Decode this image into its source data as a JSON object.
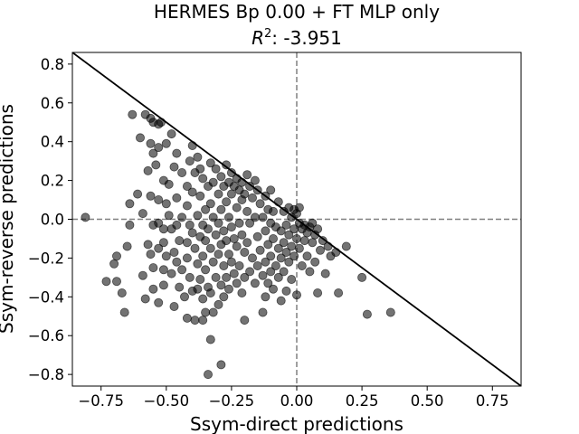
{
  "chart_data": {
    "type": "scatter",
    "title_line1": "HERMES Bp 0.00 + FT MLP only",
    "title_line2_prefix": "R",
    "title_line2_sup": "2",
    "title_line2_suffix": ": -3.951",
    "xlabel": "Ssym-direct predictions",
    "ylabel": "Ssym-reverse predictions",
    "xlim": [
      -0.86,
      0.86
    ],
    "ylim": [
      -0.86,
      0.86
    ],
    "xticks": [
      -0.75,
      -0.5,
      -0.25,
      0.0,
      0.25,
      0.5,
      0.75
    ],
    "xtick_labels": [
      "−0.75",
      "−0.50",
      "−0.25",
      "0.00",
      "0.25",
      "0.50",
      "0.75"
    ],
    "yticks": [
      -0.8,
      -0.6,
      -0.4,
      -0.2,
      0.0,
      0.2,
      0.4,
      0.6,
      0.8
    ],
    "ytick_labels": [
      "−0.8",
      "−0.6",
      "−0.4",
      "−0.2",
      "0.0",
      "0.2",
      "0.4",
      "0.6",
      "0.8"
    ],
    "reference_line": {
      "from": [
        -0.86,
        0.86
      ],
      "to": [
        0.86,
        -0.86
      ],
      "color": "#000000",
      "style": "solid"
    },
    "zero_lines": {
      "color": "#808080",
      "style": "dashed"
    },
    "marker_color": "#000000",
    "marker_alpha": 0.55,
    "grid": false,
    "points": [
      [
        -0.81,
        0.01
      ],
      [
        -0.73,
        -0.32
      ],
      [
        -0.7,
        -0.23
      ],
      [
        -0.69,
        -0.19
      ],
      [
        -0.69,
        -0.32
      ],
      [
        -0.67,
        -0.38
      ],
      [
        -0.66,
        -0.48
      ],
      [
        -0.65,
        -0.14
      ],
      [
        -0.64,
        0.08
      ],
      [
        -0.64,
        -0.03
      ],
      [
        -0.63,
        0.54
      ],
      [
        -0.61,
        0.13
      ],
      [
        -0.6,
        0.42
      ],
      [
        -0.59,
        0.03
      ],
      [
        -0.59,
        -0.29
      ],
      [
        -0.58,
        0.54
      ],
      [
        -0.58,
        -0.41
      ],
      [
        -0.57,
        -0.13
      ],
      [
        -0.57,
        0.25
      ],
      [
        -0.56,
        0.52
      ],
      [
        -0.56,
        0.39
      ],
      [
        -0.56,
        0.12
      ],
      [
        -0.56,
        -0.18
      ],
      [
        -0.55,
        0.5
      ],
      [
        -0.55,
        0.34
      ],
      [
        -0.55,
        -0.03
      ],
      [
        -0.55,
        -0.25
      ],
      [
        -0.55,
        -0.36
      ],
      [
        -0.54,
        0.28
      ],
      [
        -0.53,
        0.49
      ],
      [
        -0.53,
        0.37
      ],
      [
        -0.53,
        0.1
      ],
      [
        -0.53,
        -0.02
      ],
      [
        -0.53,
        -0.15
      ],
      [
        -0.53,
        -0.43
      ],
      [
        -0.52,
        0.5
      ],
      [
        -0.51,
        0.2
      ],
      [
        -0.51,
        -0.05
      ],
      [
        -0.51,
        -0.12
      ],
      [
        -0.51,
        -0.26
      ],
      [
        -0.51,
        -0.34
      ],
      [
        -0.5,
        0.39
      ],
      [
        -0.5,
        0.08
      ],
      [
        -0.5,
        -0.19
      ],
      [
        -0.49,
        0.18
      ],
      [
        -0.49,
        0.02
      ],
      [
        -0.48,
        0.44
      ],
      [
        -0.48,
        -0.05
      ],
      [
        -0.48,
        -0.28
      ],
      [
        -0.47,
        0.27
      ],
      [
        -0.47,
        -0.17
      ],
      [
        -0.47,
        -0.45
      ],
      [
        -0.46,
        0.34
      ],
      [
        -0.46,
        0.11
      ],
      [
        -0.46,
        -0.03
      ],
      [
        -0.46,
        -0.22
      ],
      [
        -0.45,
        -0.11
      ],
      [
        -0.45,
        -0.35
      ],
      [
        -0.44,
        0.24
      ],
      [
        -0.44,
        0.01
      ],
      [
        -0.44,
        -0.26
      ],
      [
        -0.43,
        -0.4
      ],
      [
        -0.42,
        0.17
      ],
      [
        -0.42,
        0.07
      ],
      [
        -0.42,
        -0.12
      ],
      [
        -0.42,
        -0.2
      ],
      [
        -0.42,
        -0.51
      ],
      [
        -0.41,
        0.3
      ],
      [
        -0.41,
        -0.03
      ],
      [
        -0.41,
        -0.3
      ],
      [
        -0.4,
        0.38
      ],
      [
        -0.4,
        0.14
      ],
      [
        -0.4,
        -0.07
      ],
      [
        -0.4,
        -0.37
      ],
      [
        -0.39,
        0.24
      ],
      [
        -0.39,
        -0.15
      ],
      [
        -0.39,
        -0.52
      ],
      [
        -0.38,
        0.32
      ],
      [
        -0.38,
        0.02
      ],
      [
        -0.38,
        -0.23
      ],
      [
        -0.38,
        -0.36
      ],
      [
        -0.37,
        0.26
      ],
      [
        -0.37,
        0.12
      ],
      [
        -0.37,
        -0.09
      ],
      [
        -0.37,
        -0.31
      ],
      [
        -0.36,
        0.21
      ],
      [
        -0.36,
        -0.03
      ],
      [
        -0.36,
        -0.19
      ],
      [
        -0.36,
        -0.41
      ],
      [
        -0.36,
        -0.52
      ],
      [
        -0.35,
        0.05
      ],
      [
        -0.35,
        -0.11
      ],
      [
        -0.35,
        -0.26
      ],
      [
        -0.35,
        -0.48
      ],
      [
        -0.34,
        0.17
      ],
      [
        -0.34,
        -0.05
      ],
      [
        -0.34,
        -0.35
      ],
      [
        -0.34,
        -0.8
      ],
      [
        -0.33,
        0.29
      ],
      [
        -0.33,
        0.08
      ],
      [
        -0.33,
        -0.15
      ],
      [
        -0.33,
        -0.38
      ],
      [
        -0.33,
        -0.62
      ],
      [
        -0.32,
        0.19
      ],
      [
        -0.32,
        0.01
      ],
      [
        -0.32,
        -0.22
      ],
      [
        -0.32,
        -0.48
      ],
      [
        -0.31,
        0.26
      ],
      [
        -0.31,
        -0.08
      ],
      [
        -0.31,
        -0.3
      ],
      [
        -0.3,
        0.13
      ],
      [
        -0.3,
        -0.02
      ],
      [
        -0.3,
        -0.18
      ],
      [
        -0.3,
        -0.44
      ],
      [
        -0.29,
        0.22
      ],
      [
        -0.29,
        0.05
      ],
      [
        -0.29,
        -0.13
      ],
      [
        -0.29,
        -0.34
      ],
      [
        -0.29,
        -0.75
      ],
      [
        -0.28,
        0.17
      ],
      [
        -0.28,
        -0.06
      ],
      [
        -0.28,
        -0.24
      ],
      [
        -0.28,
        -0.4
      ],
      [
        -0.27,
        0.28
      ],
      [
        -0.27,
        0.09
      ],
      [
        -0.27,
        -0.11
      ],
      [
        -0.27,
        -0.3
      ],
      [
        -0.26,
        0.19
      ],
      [
        -0.26,
        0.01
      ],
      [
        -0.26,
        -0.18
      ],
      [
        -0.26,
        -0.36
      ],
      [
        -0.25,
        0.24
      ],
      [
        -0.25,
        0.13
      ],
      [
        -0.25,
        -0.04
      ],
      [
        -0.25,
        -0.22
      ],
      [
        -0.24,
        0.17
      ],
      [
        -0.24,
        -0.1
      ],
      [
        -0.24,
        -0.28
      ],
      [
        -0.23,
        0.21
      ],
      [
        -0.23,
        0.06
      ],
      [
        -0.23,
        -0.14
      ],
      [
        -0.23,
        -0.33
      ],
      [
        -0.22,
        0.15
      ],
      [
        -0.22,
        -0.02
      ],
      [
        -0.22,
        -0.24
      ],
      [
        -0.21,
        0.19
      ],
      [
        -0.21,
        0.1
      ],
      [
        -0.21,
        -0.08
      ],
      [
        -0.21,
        -0.38
      ],
      [
        -0.2,
        0.13
      ],
      [
        -0.2,
        -0.17
      ],
      [
        -0.2,
        -0.3
      ],
      [
        -0.2,
        -0.52
      ],
      [
        -0.19,
        0.23
      ],
      [
        -0.19,
        0.04
      ],
      [
        -0.19,
        -0.12
      ],
      [
        -0.18,
        0.17
      ],
      [
        -0.18,
        -0.02
      ],
      [
        -0.18,
        -0.27
      ],
      [
        -0.17,
        0.11
      ],
      [
        -0.17,
        -0.2
      ],
      [
        -0.16,
        0.2
      ],
      [
        -0.16,
        0.01
      ],
      [
        -0.16,
        -0.33
      ],
      [
        -0.15,
        0.15
      ],
      [
        -0.15,
        -0.09
      ],
      [
        -0.15,
        -0.24
      ],
      [
        -0.14,
        0.08
      ],
      [
        -0.14,
        -0.16
      ],
      [
        -0.13,
        0.01
      ],
      [
        -0.13,
        -0.29
      ],
      [
        -0.13,
        -0.48
      ],
      [
        -0.12,
        0.12
      ],
      [
        -0.12,
        -0.06
      ],
      [
        -0.12,
        -0.22
      ],
      [
        -0.12,
        -0.4
      ],
      [
        -0.11,
        0.05
      ],
      [
        -0.11,
        -0.13
      ],
      [
        -0.11,
        -0.33
      ],
      [
        -0.1,
        0.15
      ],
      [
        -0.1,
        -0.02
      ],
      [
        -0.1,
        -0.19
      ],
      [
        -0.1,
        -0.27
      ],
      [
        -0.09,
        0.04
      ],
      [
        -0.09,
        -0.1
      ],
      [
        -0.09,
        -0.36
      ],
      [
        -0.08,
        -0.04
      ],
      [
        -0.08,
        -0.24
      ],
      [
        -0.07,
        0.09
      ],
      [
        -0.07,
        -0.15
      ],
      [
        -0.07,
        -0.3
      ],
      [
        -0.06,
        -0.06
      ],
      [
        -0.06,
        -0.2
      ],
      [
        -0.06,
        -0.42
      ],
      [
        -0.05,
        0.04
      ],
      [
        -0.05,
        -0.12
      ],
      [
        -0.05,
        -0.27
      ],
      [
        -0.04,
        -0.03
      ],
      [
        -0.04,
        -0.17
      ],
      [
        -0.04,
        -0.37
      ],
      [
        -0.03,
        0.06
      ],
      [
        -0.03,
        -0.08
      ],
      [
        -0.03,
        -0.22
      ],
      [
        -0.02,
        0.01
      ],
      [
        -0.02,
        -0.14
      ],
      [
        -0.02,
        -0.31
      ],
      [
        -0.01,
        0.05
      ],
      [
        -0.01,
        -0.05
      ],
      [
        -0.01,
        -0.19
      ],
      [
        0.0,
        0.03
      ],
      [
        0.0,
        -0.1
      ],
      [
        0.0,
        -0.39
      ],
      [
        0.01,
        0.06
      ],
      [
        0.01,
        -0.02
      ],
      [
        0.01,
        -0.15
      ],
      [
        0.02,
        -0.05
      ],
      [
        0.02,
        -0.24
      ],
      [
        0.03,
        -0.03
      ],
      [
        0.03,
        -0.11
      ],
      [
        0.04,
        -0.07
      ],
      [
        0.04,
        -0.19
      ],
      [
        0.05,
        -0.04
      ],
      [
        0.05,
        -0.27
      ],
      [
        0.06,
        -0.02
      ],
      [
        0.06,
        -0.12
      ],
      [
        0.07,
        -0.22
      ],
      [
        0.07,
        -0.08
      ],
      [
        0.08,
        -0.38
      ],
      [
        0.08,
        -0.05
      ],
      [
        0.09,
        -0.16
      ],
      [
        0.1,
        -0.11
      ],
      [
        0.11,
        -0.28
      ],
      [
        0.12,
        -0.14
      ],
      [
        0.13,
        -0.19
      ],
      [
        0.15,
        -0.17
      ],
      [
        0.16,
        -0.38
      ],
      [
        0.19,
        -0.14
      ],
      [
        0.25,
        -0.3
      ],
      [
        0.27,
        -0.49
      ],
      [
        0.36,
        -0.48
      ]
    ]
  }
}
